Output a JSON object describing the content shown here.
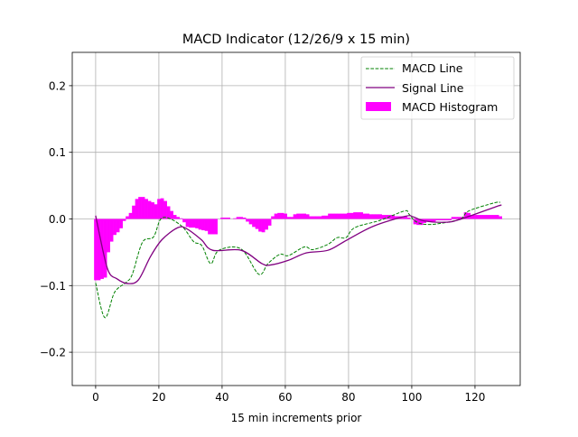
{
  "chart_data": {
    "type": "line",
    "title": "MACD Indicator (12/26/9 x 15 min)",
    "xlabel": "15 min increments prior",
    "ylabel": "",
    "xlim": [
      -7.4,
      134.3
    ],
    "ylim": [
      -0.25,
      0.25
    ],
    "xticks": [
      0,
      20,
      40,
      60,
      80,
      100,
      120
    ],
    "xtick_labels": [
      "0",
      "20",
      "40",
      "60",
      "80",
      "100",
      "120"
    ],
    "yticks": [
      -0.2,
      -0.1,
      0.0,
      0.1,
      0.2
    ],
    "ytick_labels": [
      "−0.2",
      "−0.1",
      "0.0",
      "0.1",
      "0.2"
    ],
    "grid": true,
    "legend_position": "top-right",
    "colors": {
      "macd": "#008000",
      "signal": "#800080",
      "histogram": "#ff00ff",
      "grid": "#b0b0b0"
    },
    "series": [
      {
        "name": "MACD Line",
        "style": "dashed",
        "points": [
          [
            0,
            -0.096
          ],
          [
            2.9,
            -0.148
          ],
          [
            6,
            -0.11
          ],
          [
            9.7,
            -0.095
          ],
          [
            11.6,
            -0.083
          ],
          [
            14.8,
            -0.035
          ],
          [
            18.3,
            -0.027
          ],
          [
            20.6,
            0.0
          ],
          [
            23.7,
            0.0
          ],
          [
            27.7,
            -0.013
          ],
          [
            31,
            -0.034
          ],
          [
            33.6,
            -0.04
          ],
          [
            36.4,
            -0.067
          ],
          [
            39,
            -0.047
          ],
          [
            46,
            -0.045
          ],
          [
            51.6,
            -0.083
          ],
          [
            54.5,
            -0.067
          ],
          [
            58.3,
            -0.053
          ],
          [
            61,
            -0.055
          ],
          [
            66,
            -0.042
          ],
          [
            68.7,
            -0.046
          ],
          [
            73.5,
            -0.038
          ],
          [
            76.4,
            -0.028
          ],
          [
            79.2,
            -0.028
          ],
          [
            82,
            -0.013
          ],
          [
            90,
            -0.002
          ],
          [
            97.7,
            0.012
          ],
          [
            99,
            0.008
          ],
          [
            101,
            -0.003
          ],
          [
            104,
            -0.008
          ],
          [
            108.6,
            -0.007
          ],
          [
            115.4,
            0.0
          ],
          [
            118,
            0.012
          ],
          [
            126,
            0.024
          ],
          [
            128,
            0.025
          ]
        ]
      },
      {
        "name": "Signal Line",
        "style": "solid",
        "points": [
          [
            0,
            0.005
          ],
          [
            3.7,
            -0.074
          ],
          [
            6.8,
            -0.09
          ],
          [
            10.3,
            -0.097
          ],
          [
            13.6,
            -0.091
          ],
          [
            17.4,
            -0.056
          ],
          [
            21,
            -0.031
          ],
          [
            26,
            -0.013
          ],
          [
            28.9,
            -0.015
          ],
          [
            33.4,
            -0.031
          ],
          [
            37,
            -0.047
          ],
          [
            46,
            -0.047
          ],
          [
            52.6,
            -0.067
          ],
          [
            55.4,
            -0.069
          ],
          [
            61,
            -0.062
          ],
          [
            66.6,
            -0.051
          ],
          [
            73.5,
            -0.047
          ],
          [
            79,
            -0.033
          ],
          [
            87.8,
            -0.011
          ],
          [
            98,
            0.004
          ],
          [
            100.5,
            0.003
          ],
          [
            104,
            -0.003
          ],
          [
            110.5,
            -0.005
          ],
          [
            115,
            -0.001
          ],
          [
            127,
            0.019
          ],
          [
            128,
            0.02
          ]
        ]
      },
      {
        "name": "MACD Histogram",
        "style": "bar",
        "values": [
          -0.092,
          -0.092,
          -0.09,
          -0.088,
          -0.05,
          -0.034,
          -0.024,
          -0.02,
          -0.014,
          -0.003,
          0.004,
          0.009,
          0.02,
          0.03,
          0.033,
          0.033,
          0.03,
          0.027,
          0.025,
          0.022,
          0.03,
          0.031,
          0.027,
          0.019,
          0.012,
          0.006,
          0.003,
          0.001,
          -0.005,
          -0.012,
          -0.013,
          -0.013,
          -0.014,
          -0.016,
          -0.017,
          -0.018,
          -0.023,
          -0.023,
          -0.023,
          0.0,
          0.002,
          0.002,
          0.002,
          0.0,
          0.001,
          0.003,
          0.003,
          0.002,
          -0.004,
          -0.008,
          -0.012,
          -0.015,
          -0.019,
          -0.02,
          -0.016,
          -0.01,
          0.004,
          0.008,
          0.009,
          0.009,
          0.008,
          0.003,
          0.003,
          0.007,
          0.008,
          0.008,
          0.008,
          0.007,
          0.004,
          0.004,
          0.004,
          0.004,
          0.005,
          0.005,
          0.008,
          0.008,
          0.008,
          0.008,
          0.008,
          0.008,
          0.009,
          0.009,
          0.01,
          0.01,
          0.01,
          0.008,
          0.008,
          0.007,
          0.007,
          0.007,
          0.007,
          0.006,
          0.006,
          0.006,
          0.006,
          0.004,
          0.004,
          0.004,
          0.004,
          0.002,
          0.0,
          -0.008,
          -0.009,
          -0.009,
          -0.006,
          -0.004,
          -0.004,
          -0.004,
          -0.002,
          -0.002,
          -0.002,
          -0.002,
          -0.002,
          0.003,
          0.003,
          0.003,
          0.003,
          0.01,
          0.009,
          0.006,
          0.006,
          0.006,
          0.006,
          0.006,
          0.006,
          0.006,
          0.006,
          0.006,
          0.004
        ]
      }
    ]
  }
}
